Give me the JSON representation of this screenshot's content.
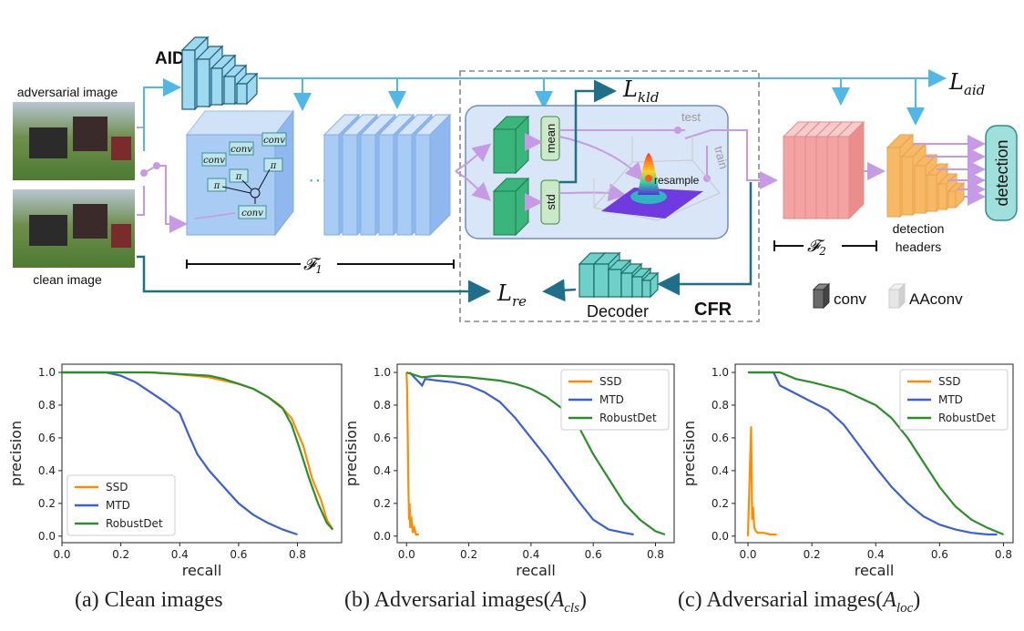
{
  "diagram": {
    "labels": {
      "aid": "AID",
      "adversarial_image": "adversarial image",
      "clean_image": "clean image",
      "f1": "𝓕",
      "f1_sub": "1",
      "f2": "𝓕",
      "f2_sub": "2",
      "l_aid": "L",
      "l_aid_sub": "aid",
      "l_kld": "L",
      "l_kld_sub": "kld",
      "l_re": "L",
      "l_re_sub": "re",
      "mean": "mean",
      "std": "std",
      "test": "test",
      "train": "train",
      "resample": "resample",
      "decoder": "Decoder",
      "cfr": "CFR",
      "detection": "detection",
      "detection_headers_1": "detection",
      "detection_headers_2": "headers",
      "legend_conv": "conv",
      "legend_aaconv": "AAconv",
      "conv_blocks": [
        "conv",
        "conv",
        "conv",
        "conv"
      ],
      "conv_sub": [
        "1",
        "2",
        "n",
        ""
      ],
      "pi_blocks": [
        "π",
        "π",
        "π"
      ],
      "pi_sub": [
        "1",
        "2",
        "n"
      ],
      "ellipsis": "⋯"
    },
    "colors": {
      "arrow_blue": "#4fb8e8",
      "arrow_purple": "#c79ae6",
      "arrow_dark": "#1f6f8b",
      "aid_block": "#9fd9ef",
      "f1_block": "#a9ccf5",
      "f2_block": "#f4a3a3",
      "head_block": "#f8b967",
      "cfr_bg": "#d9e6f7",
      "green_block": "#3ab57b",
      "detection_box": "#9fe0dc"
    }
  },
  "chart_data": [
    {
      "type": "line",
      "xlabel": "recall",
      "ylabel": "precision",
      "xlim": [
        0,
        0.95
      ],
      "ylim": [
        -0.04,
        1.05
      ],
      "xticks": [
        0.0,
        0.2,
        0.4,
        0.6,
        0.8
      ],
      "yticks": [
        0.0,
        0.2,
        0.4,
        0.6,
        0.8,
        1.0
      ],
      "legend": "bottom-left",
      "series": [
        {
          "name": "SSD",
          "color": "#ff8c00",
          "x": [
            0.0,
            0.15,
            0.3,
            0.38,
            0.45,
            0.5,
            0.55,
            0.6,
            0.65,
            0.7,
            0.74,
            0.78,
            0.82,
            0.85,
            0.88,
            0.9,
            0.92
          ],
          "y": [
            1.0,
            1.0,
            1.0,
            0.99,
            0.98,
            0.97,
            0.95,
            0.93,
            0.9,
            0.85,
            0.8,
            0.72,
            0.55,
            0.35,
            0.22,
            0.1,
            0.04
          ]
        },
        {
          "name": "MTD",
          "color": "#3a5fd8",
          "x": [
            0.0,
            0.1,
            0.15,
            0.2,
            0.25,
            0.3,
            0.35,
            0.4,
            0.43,
            0.46,
            0.5,
            0.55,
            0.6,
            0.65,
            0.7,
            0.75,
            0.8
          ],
          "y": [
            1.0,
            1.0,
            1.0,
            0.98,
            0.94,
            0.88,
            0.82,
            0.75,
            0.62,
            0.5,
            0.4,
            0.3,
            0.2,
            0.13,
            0.08,
            0.04,
            0.01
          ]
        },
        {
          "name": "RobustDet",
          "color": "#2a8f2a",
          "x": [
            0.0,
            0.15,
            0.3,
            0.4,
            0.5,
            0.55,
            0.6,
            0.65,
            0.7,
            0.75,
            0.78,
            0.81,
            0.84,
            0.87,
            0.9,
            0.92
          ],
          "y": [
            1.0,
            1.0,
            1.0,
            0.99,
            0.98,
            0.96,
            0.93,
            0.9,
            0.85,
            0.78,
            0.68,
            0.52,
            0.35,
            0.2,
            0.08,
            0.04
          ]
        }
      ]
    },
    {
      "type": "line",
      "xlabel": "recall",
      "ylabel": "precision",
      "xlim": [
        -0.03,
        0.86
      ],
      "ylim": [
        -0.04,
        1.05
      ],
      "xticks": [
        0.0,
        0.2,
        0.4,
        0.6,
        0.8
      ],
      "yticks": [
        0.0,
        0.2,
        0.4,
        0.6,
        0.8,
        1.0
      ],
      "legend": "top-right",
      "series": [
        {
          "name": "SSD",
          "color": "#ff8c00",
          "x": [
            0.0,
            0.002,
            0.004,
            0.006,
            0.008,
            0.01,
            0.012,
            0.015,
            0.02,
            0.025,
            0.03,
            0.04
          ],
          "y": [
            1.0,
            0.9,
            0.6,
            0.3,
            0.1,
            0.2,
            0.05,
            0.12,
            0.02,
            0.05,
            0.01,
            0.01
          ]
        },
        {
          "name": "MTD",
          "color": "#3a5fd8",
          "x": [
            0.01,
            0.05,
            0.06,
            0.1,
            0.15,
            0.2,
            0.25,
            0.3,
            0.35,
            0.4,
            0.45,
            0.5,
            0.55,
            0.6,
            0.65,
            0.7,
            0.73
          ],
          "y": [
            1.0,
            0.92,
            0.96,
            0.95,
            0.94,
            0.92,
            0.88,
            0.82,
            0.72,
            0.6,
            0.48,
            0.35,
            0.22,
            0.1,
            0.04,
            0.02,
            0.01
          ]
        },
        {
          "name": "RobustDet",
          "color": "#2a8f2a",
          "x": [
            0.0,
            0.05,
            0.1,
            0.2,
            0.3,
            0.35,
            0.4,
            0.45,
            0.5,
            0.55,
            0.6,
            0.65,
            0.7,
            0.75,
            0.8,
            0.83
          ],
          "y": [
            1.0,
            0.97,
            0.98,
            0.97,
            0.95,
            0.93,
            0.9,
            0.85,
            0.78,
            0.68,
            0.5,
            0.35,
            0.2,
            0.1,
            0.03,
            0.01
          ]
        }
      ]
    },
    {
      "type": "line",
      "xlabel": "recall",
      "ylabel": "precision",
      "xlim": [
        -0.04,
        0.83
      ],
      "ylim": [
        -0.04,
        1.05
      ],
      "xticks": [
        0.0,
        0.2,
        0.4,
        0.6,
        0.8
      ],
      "yticks": [
        0.0,
        0.2,
        0.4,
        0.6,
        0.8,
        1.0
      ],
      "legend": "top-right",
      "series": [
        {
          "name": "SSD",
          "color": "#ff8c00",
          "x": [
            0.0,
            0.005,
            0.01,
            0.013,
            0.016,
            0.02,
            0.025,
            0.03,
            0.05,
            0.07,
            0.09
          ],
          "y": [
            0.0,
            0.35,
            0.67,
            0.1,
            0.18,
            0.05,
            0.03,
            0.02,
            0.02,
            0.01,
            0.01
          ]
        },
        {
          "name": "MTD",
          "color": "#3a5fd8",
          "x": [
            0.0,
            0.08,
            0.1,
            0.15,
            0.2,
            0.25,
            0.3,
            0.35,
            0.4,
            0.45,
            0.5,
            0.55,
            0.6,
            0.65,
            0.7,
            0.75,
            0.78
          ],
          "y": [
            1.0,
            1.0,
            0.92,
            0.87,
            0.82,
            0.77,
            0.68,
            0.55,
            0.42,
            0.3,
            0.2,
            0.12,
            0.07,
            0.04,
            0.02,
            0.01,
            0.01
          ]
        },
        {
          "name": "RobustDet",
          "color": "#2a8f2a",
          "x": [
            0.0,
            0.1,
            0.15,
            0.2,
            0.3,
            0.4,
            0.45,
            0.5,
            0.55,
            0.6,
            0.65,
            0.7,
            0.75,
            0.8
          ],
          "y": [
            1.0,
            1.0,
            0.96,
            0.94,
            0.89,
            0.8,
            0.72,
            0.6,
            0.45,
            0.3,
            0.18,
            0.1,
            0.05,
            0.01
          ]
        }
      ]
    }
  ],
  "captions": [
    {
      "label": "(a) Clean images",
      "sub": ""
    },
    {
      "label": "(b) Adversarial images(",
      "math": "A",
      "sub": "cls",
      "close": ")"
    },
    {
      "label": "(c) Adversarial images(",
      "math": "A",
      "sub": "loc",
      "close": ")"
    }
  ]
}
